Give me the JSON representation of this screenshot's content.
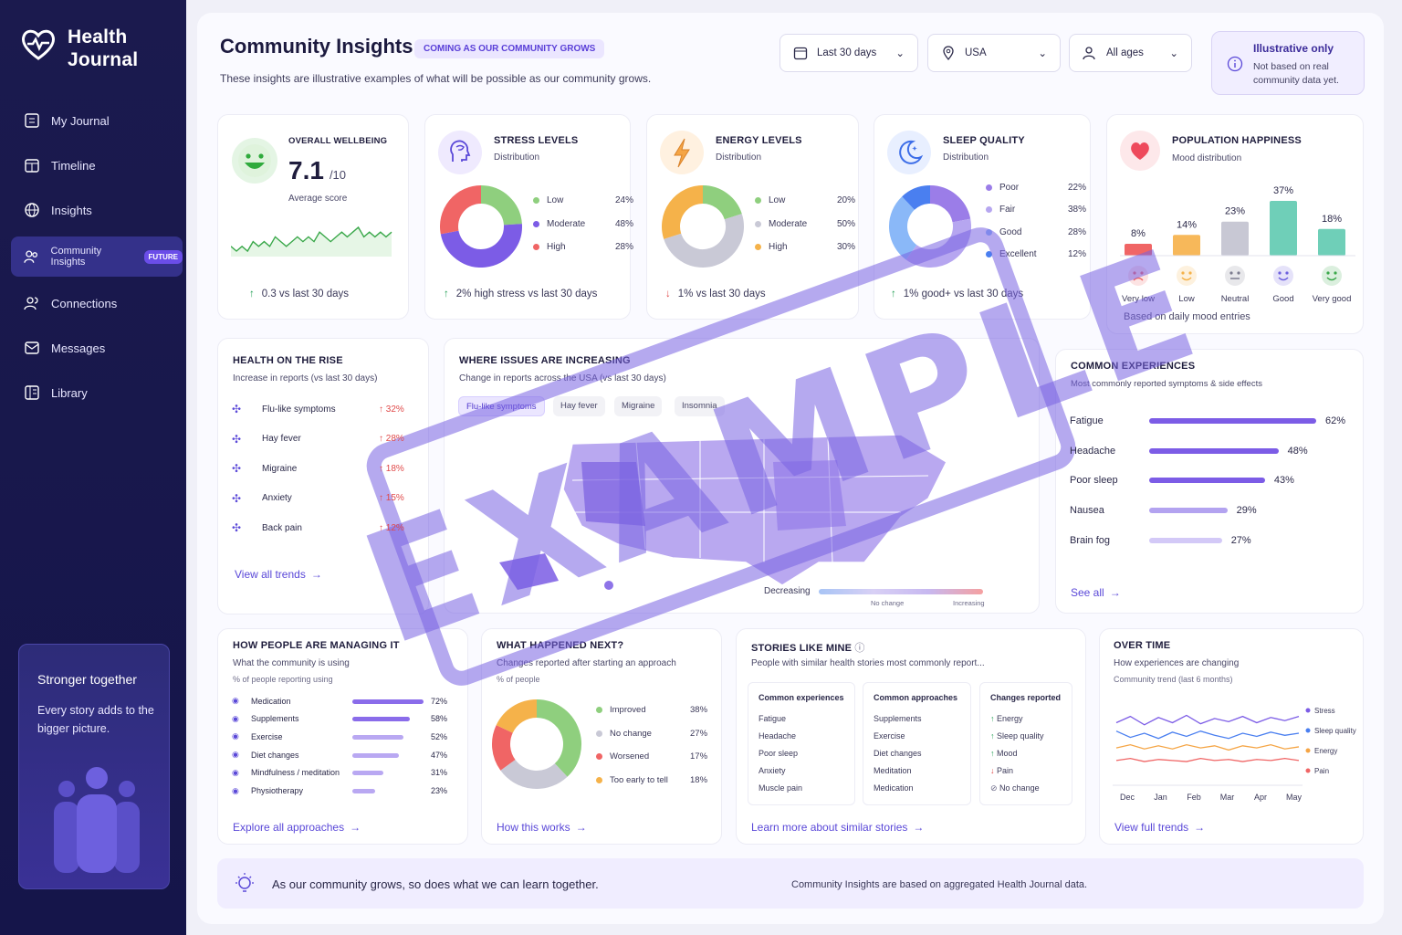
{
  "app": {
    "name_line1": "Health",
    "name_line2": "Journal"
  },
  "nav": [
    {
      "label": "My Journal",
      "icon": "journal-icon"
    },
    {
      "label": "Timeline",
      "icon": "calendar-icon"
    },
    {
      "label": "Insights",
      "icon": "globe-icon"
    },
    {
      "label": "Community Insights",
      "icon": "people-icon",
      "badge": "FUTURE"
    },
    {
      "label": "Connections",
      "icon": "connections-icon"
    },
    {
      "label": "Messages",
      "icon": "mail-icon"
    },
    {
      "label": "Library",
      "icon": "library-icon"
    }
  ],
  "promo": {
    "title": "Stronger together",
    "text": "Every story adds to the bigger picture."
  },
  "header": {
    "title": "Community Insights",
    "badge": "COMING AS OUR COMMUNITY GROWS",
    "subtitle": "These insights are illustrative examples of what will be possible as our community grows."
  },
  "filters": {
    "period": "Last 30 days",
    "region": "USA",
    "ages": "All ages"
  },
  "notice": {
    "title": "Illustrative only",
    "text": "Not based on real community data yet."
  },
  "wellbeing": {
    "title": "OVERALL WELLBEING",
    "score": "7.1",
    "max": "/10",
    "label": "Average score",
    "foot": "0.3 vs last 30 days",
    "spark": [
      5,
      4,
      5,
      4,
      6,
      5,
      6,
      5,
      7,
      6,
      5,
      6,
      7,
      6,
      7,
      6,
      8,
      7,
      6,
      7,
      8,
      7,
      8,
      9,
      7,
      8,
      7,
      8,
      7,
      8
    ]
  },
  "stress": {
    "title": "STRESS LEVELS",
    "sub": "Distribution",
    "foot": "2% high stress vs last 30 days",
    "items": [
      {
        "label": "Low",
        "pct": "24%",
        "value": 24,
        "color": "#8fcf7e"
      },
      {
        "label": "Moderate",
        "pct": "48%",
        "value": 48,
        "color": "#7c5ce6"
      },
      {
        "label": "High",
        "pct": "28%",
        "value": 28,
        "color": "#f06565"
      }
    ]
  },
  "energy": {
    "title": "ENERGY LEVELS",
    "sub": "Distribution",
    "foot": "1% vs last 30 days",
    "items": [
      {
        "label": "Low",
        "pct": "20%",
        "value": 20,
        "color": "#8fcf7e"
      },
      {
        "label": "Moderate",
        "pct": "50%",
        "value": 50,
        "color": "#c9c9d6"
      },
      {
        "label": "High",
        "pct": "30%",
        "value": 30,
        "color": "#f5b24a"
      }
    ]
  },
  "sleep": {
    "title": "SLEEP QUALITY",
    "sub": "Distribution",
    "foot": "1% good+ vs last 30 days",
    "items": [
      {
        "label": "Poor",
        "pct": "22%",
        "value": 22,
        "color": "#9b7de8"
      },
      {
        "label": "Fair",
        "pct": "38%",
        "value": 38,
        "color": "#b6a6f0"
      },
      {
        "label": "Good",
        "pct": "28%",
        "value": 28,
        "color": "#8ab8f8"
      },
      {
        "label": "Excellent",
        "pct": "12%",
        "value": 12,
        "color": "#4a7ff0"
      }
    ]
  },
  "happiness": {
    "title": "POPULATION HAPPINESS",
    "sub": "Mood distribution",
    "foot": "Based on daily mood entries",
    "bars": [
      {
        "label": "Very low",
        "pct": "8%",
        "value": 8,
        "color": "#f06565"
      },
      {
        "label": "Low",
        "pct": "14%",
        "value": 14,
        "color": "#f7b85a"
      },
      {
        "label": "Neutral",
        "pct": "23%",
        "value": 23,
        "color": "#c8c8d4"
      },
      {
        "label": "Good",
        "pct": "37%",
        "value": 37,
        "color": "#6fcfb8"
      },
      {
        "label": "Very good",
        "pct": "18%",
        "value": 18,
        "color": "#6fcfb8"
      }
    ]
  },
  "rise": {
    "title": "HEALTH ON THE RISE",
    "sub": "Increase in reports (vs last 30 days)",
    "link": "View all trends",
    "items": [
      {
        "label": "Flu-like symptoms",
        "pct": "32%"
      },
      {
        "label": "Hay fever",
        "pct": "28%"
      },
      {
        "label": "Migraine",
        "pct": "18%"
      },
      {
        "label": "Anxiety",
        "pct": "15%"
      },
      {
        "label": "Back pain",
        "pct": "12%"
      }
    ]
  },
  "where": {
    "title": "WHERE ISSUES ARE INCREASING",
    "sub": "Change in reports across the USA (vs last 30 days)",
    "tags": [
      "Flu-like symptoms",
      "Hay fever",
      "Migraine",
      "Insomnia"
    ],
    "legend_start": "Decreasing",
    "legend_mid": "No change",
    "legend_end": "Increasing"
  },
  "common": {
    "title": "COMMON EXPERIENCES",
    "sub": "Most commonly reported symptoms & side effects",
    "link": "See all",
    "items": [
      {
        "label": "Fatigue",
        "pct": "62%",
        "value": 62
      },
      {
        "label": "Headache",
        "pct": "48%",
        "value": 48
      },
      {
        "label": "Poor sleep",
        "pct": "43%",
        "value": 43
      },
      {
        "label": "Nausea",
        "pct": "29%",
        "value": 29
      },
      {
        "label": "Brain fog",
        "pct": "27%",
        "value": 27
      }
    ]
  },
  "managing": {
    "title": "HOW PEOPLE ARE MANAGING IT",
    "sub": "What the community is using",
    "note": "% of people reporting using",
    "link": "Explore all approaches",
    "items": [
      {
        "label": "Medication",
        "pct": "72%",
        "value": 72
      },
      {
        "label": "Supplements",
        "pct": "58%",
        "value": 58
      },
      {
        "label": "Exercise",
        "pct": "52%",
        "value": 52
      },
      {
        "label": "Diet changes",
        "pct": "47%",
        "value": 47
      },
      {
        "label": "Mindfulness / meditation",
        "pct": "31%",
        "value": 31
      },
      {
        "label": "Physiotherapy",
        "pct": "23%",
        "value": 23
      }
    ]
  },
  "next": {
    "title": "WHAT HAPPENED NEXT?",
    "sub": "Changes reported after starting an approach",
    "note": "% of people",
    "link": "How this works",
    "items": [
      {
        "label": "Improved",
        "pct": "38%",
        "value": 38,
        "color": "#8fcf7e"
      },
      {
        "label": "No change",
        "pct": "27%",
        "value": 27,
        "color": "#c9c9d6"
      },
      {
        "label": "Worsened",
        "pct": "17%",
        "value": 17,
        "color": "#f06565"
      },
      {
        "label": "Too early to tell",
        "pct": "18%",
        "value": 18,
        "color": "#f5b24a"
      }
    ]
  },
  "stories": {
    "title": "STORIES LIKE MINE",
    "sub": "People with similar health stories most commonly report...",
    "link": "Learn more about similar stories",
    "col1": {
      "head": "Common experiences",
      "items": [
        "Fatigue",
        "Headache",
        "Poor sleep",
        "Anxiety",
        "Muscle pain"
      ]
    },
    "col2": {
      "head": "Common approaches",
      "items": [
        "Supplements",
        "Exercise",
        "Diet changes",
        "Meditation",
        "Medication"
      ]
    },
    "col3": {
      "head": "Changes reported",
      "items": [
        "Energy",
        "Sleep quality",
        "Mood",
        "Pain",
        "No change"
      ]
    }
  },
  "overtime": {
    "title": "OVER TIME",
    "sub": "How experiences are changing",
    "note": "Community trend (last 6 months)",
    "link": "View full trends",
    "months": [
      "Dec",
      "Jan",
      "Feb",
      "Mar",
      "Apr",
      "May"
    ],
    "series": [
      {
        "name": "Stress",
        "color": "#7c5ce6",
        "values": [
          7,
          7.6,
          6.8,
          7.5,
          7,
          7.7,
          6.9,
          7.4,
          7.1,
          7.6,
          7,
          7.5,
          7.2,
          7.6
        ]
      },
      {
        "name": "Sleep quality",
        "color": "#4a7ff0",
        "values": [
          6.2,
          5.6,
          6,
          5.5,
          6.1,
          5.7,
          6.2,
          5.8,
          5.5,
          6,
          5.7,
          6.1,
          5.8,
          6
        ]
      },
      {
        "name": "Energy",
        "color": "#f5a545",
        "values": [
          4.6,
          4.9,
          4.5,
          4.8,
          4.5,
          4.9,
          4.6,
          4.8,
          4.4,
          4.8,
          4.6,
          4.9,
          4.5,
          4.7
        ]
      },
      {
        "name": "Pain",
        "color": "#f06565",
        "values": [
          3.4,
          3.6,
          3.3,
          3.5,
          3.4,
          3.3,
          3.6,
          3.4,
          3.5,
          3.3,
          3.5,
          3.4,
          3.6,
          3.4
        ]
      }
    ]
  },
  "bottom": {
    "left": "As our community grows, so does what we can learn together.",
    "right": "Community Insights are based on aggregated Health Journal data."
  },
  "stamp": {
    "word": "EXAMPLE"
  }
}
